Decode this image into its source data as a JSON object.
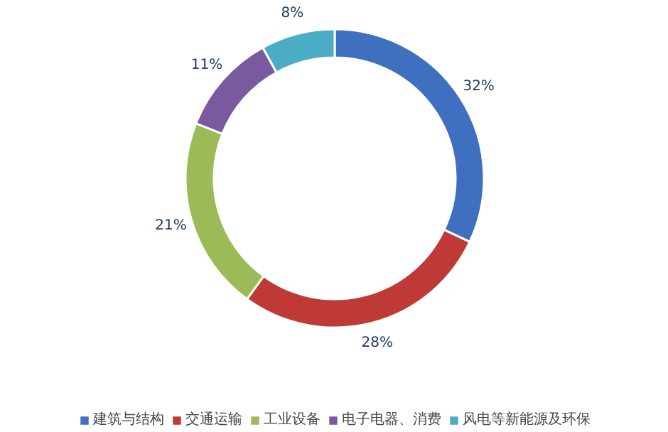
{
  "chart_data": {
    "type": "donut",
    "categories": [
      "建筑与结构",
      "交通运输",
      "工业设备",
      "电子电器、消费",
      "风电等新能源及环保"
    ],
    "values": [
      32,
      28,
      21,
      11,
      8
    ],
    "value_labels": [
      "32%",
      "28%",
      "21%",
      "11%",
      "8%"
    ],
    "colors": [
      "#3f6fbf",
      "#bf3a36",
      "#9bbb59",
      "#7a5a9e",
      "#4aacc5"
    ],
    "legend": "bottom"
  }
}
